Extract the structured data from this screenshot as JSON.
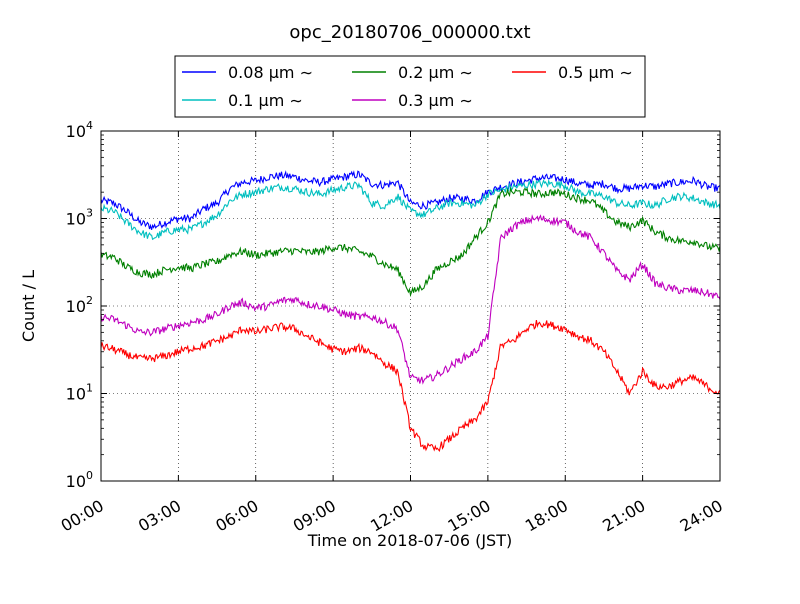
{
  "chart_data": {
    "type": "line",
    "title": "opc_20180706_000000.txt",
    "xlabel": "Time on 2018-07-06 (JST)",
    "ylabel": "Count / L",
    "x_range_hours": [
      0,
      24
    ],
    "y_scale": "log",
    "ylim": [
      1,
      10000
    ],
    "grid": true,
    "legend_position": "top-center",
    "x_ticks": [
      {
        "hour": 0,
        "label": "00:00"
      },
      {
        "hour": 3,
        "label": "03:00"
      },
      {
        "hour": 6,
        "label": "06:00"
      },
      {
        "hour": 9,
        "label": "09:00"
      },
      {
        "hour": 12,
        "label": "12:00"
      },
      {
        "hour": 15,
        "label": "15:00"
      },
      {
        "hour": 18,
        "label": "18:00"
      },
      {
        "hour": 21,
        "label": "21:00"
      },
      {
        "hour": 24,
        "label": "24:00"
      }
    ],
    "y_ticks": [
      {
        "value": 1,
        "base": "10",
        "exp": "0"
      },
      {
        "value": 10,
        "base": "10",
        "exp": "1"
      },
      {
        "value": 100,
        "base": "10",
        "exp": "2"
      },
      {
        "value": 1000,
        "base": "10",
        "exp": "3"
      },
      {
        "value": 10000,
        "base": "10",
        "exp": "4"
      }
    ],
    "x_hours": [
      0,
      0.5,
      1,
      1.5,
      2,
      2.5,
      3,
      3.5,
      4,
      4.5,
      5,
      5.5,
      6,
      6.5,
      7,
      7.5,
      8,
      8.5,
      9,
      9.5,
      10,
      10.5,
      11,
      11.5,
      12,
      12.5,
      13,
      13.5,
      14,
      14.5,
      15,
      15.5,
      16,
      16.5,
      17,
      17.5,
      18,
      18.5,
      19,
      19.5,
      20,
      20.5,
      21,
      21.5,
      22,
      22.5,
      23,
      23.5,
      24
    ],
    "series": [
      {
        "name": "0.08 μm ∼",
        "color": "#0000ff",
        "values": [
          1600,
          1500,
          1200,
          900,
          800,
          900,
          1000,
          1000,
          1300,
          1500,
          2200,
          2600,
          2700,
          3000,
          3100,
          3000,
          2700,
          2600,
          2800,
          3000,
          3200,
          2500,
          2400,
          2600,
          1500,
          1400,
          1500,
          1700,
          1700,
          1600,
          2000,
          2300,
          2500,
          2700,
          2900,
          2900,
          2800,
          2500,
          2400,
          2500,
          2200,
          2200,
          2400,
          2300,
          2500,
          2600,
          2700,
          2300,
          2200
        ]
      },
      {
        "name": "0.1 μm ∼",
        "color": "#00bfbf",
        "values": [
          1300,
          1200,
          900,
          700,
          600,
          700,
          750,
          750,
          900,
          1100,
          1600,
          1900,
          2000,
          2200,
          2300,
          2200,
          2000,
          1900,
          2100,
          2300,
          2400,
          1500,
          1400,
          1800,
          1200,
          1100,
          1300,
          1500,
          1500,
          1400,
          1900,
          2100,
          2300,
          2400,
          2500,
          2500,
          2400,
          2000,
          1900,
          1800,
          1500,
          1400,
          1500,
          1400,
          1700,
          1800,
          1700,
          1500,
          1400
        ]
      },
      {
        "name": "0.2 μm ∼",
        "color": "#008000",
        "values": [
          380,
          360,
          280,
          240,
          230,
          260,
          280,
          270,
          300,
          320,
          390,
          420,
          380,
          400,
          420,
          430,
          410,
          420,
          470,
          460,
          420,
          370,
          300,
          260,
          140,
          170,
          260,
          320,
          380,
          600,
          900,
          1900,
          2000,
          2000,
          1900,
          2000,
          1900,
          1700,
          1600,
          1200,
          900,
          800,
          950,
          700,
          600,
          550,
          550,
          480,
          450
        ]
      },
      {
        "name": "0.3 μm ∼",
        "color": "#bf00bf",
        "values": [
          75,
          70,
          60,
          50,
          50,
          55,
          60,
          65,
          70,
          80,
          100,
          110,
          95,
          100,
          115,
          120,
          105,
          100,
          90,
          80,
          75,
          75,
          65,
          55,
          15,
          14,
          16,
          20,
          25,
          30,
          45,
          600,
          800,
          950,
          1000,
          950,
          900,
          700,
          600,
          400,
          250,
          200,
          300,
          180,
          160,
          150,
          150,
          140,
          125
        ]
      },
      {
        "name": "0.5 μm ∼",
        "color": "#ff0000",
        "values": [
          35,
          32,
          28,
          25,
          25,
          27,
          30,
          33,
          35,
          40,
          45,
          55,
          50,
          55,
          58,
          55,
          45,
          38,
          32,
          30,
          33,
          30,
          22,
          18,
          4,
          2.5,
          2.3,
          3,
          4,
          5,
          8,
          35,
          40,
          55,
          65,
          60,
          55,
          45,
          40,
          30,
          18,
          10,
          18,
          12,
          12,
          14,
          15,
          12,
          10
        ]
      }
    ]
  }
}
